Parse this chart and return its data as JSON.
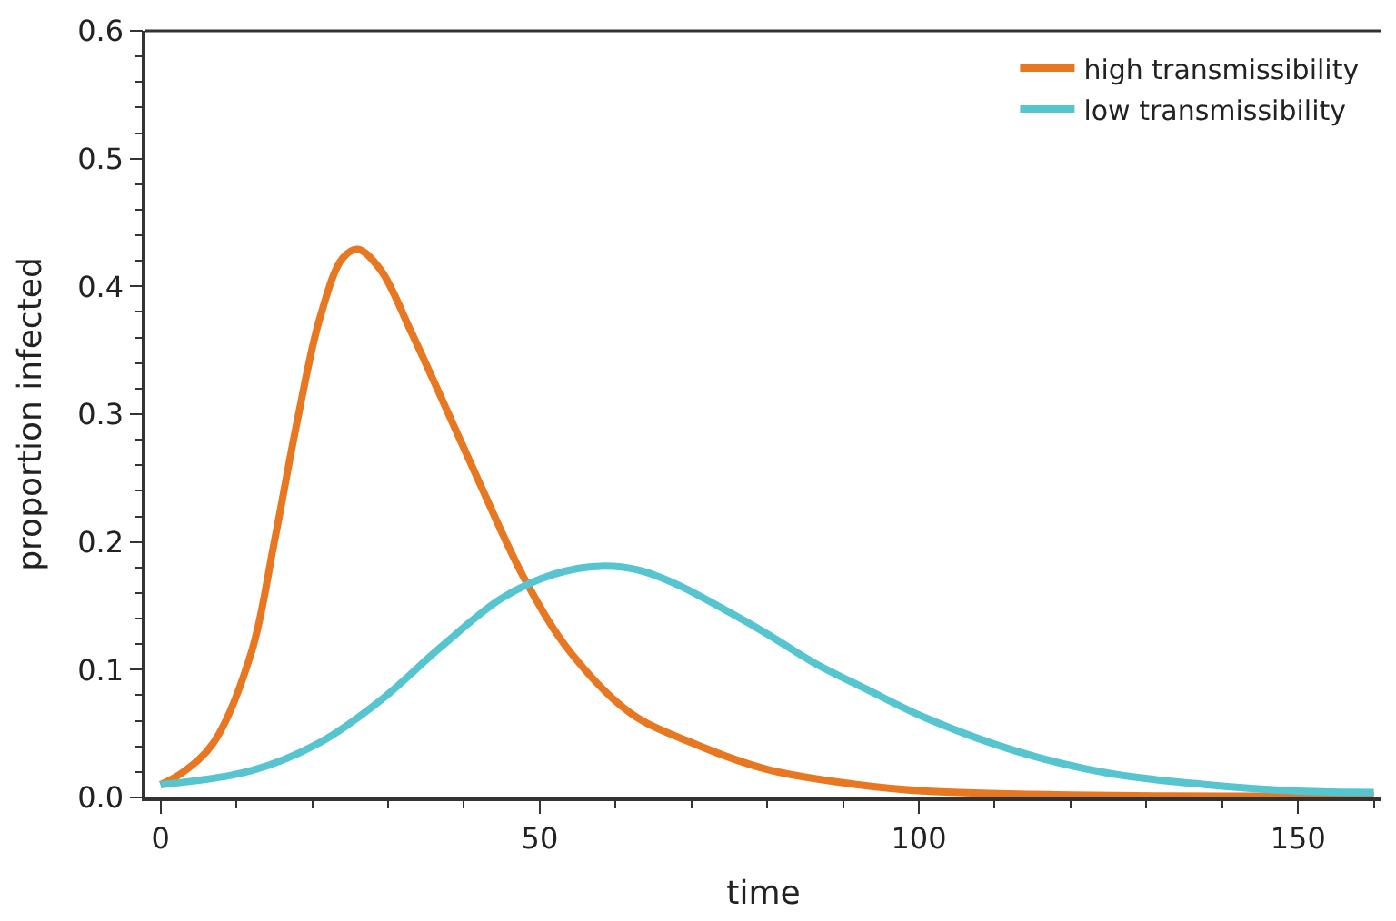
{
  "chart_data": {
    "type": "line",
    "xlabel": "time",
    "ylabel": "proportion infected",
    "xlim": [
      -2,
      161
    ],
    "xticks": [
      0,
      50,
      100,
      150
    ],
    "ylim": [
      0,
      0.6
    ],
    "yticks": [
      {
        "value": 0,
        "label": "0.0"
      },
      0.1,
      0.2,
      0.3,
      0.4,
      0.5,
      0.6
    ],
    "legend": "top right",
    "marker": "none",
    "line_style": "solid",
    "series": [
      {
        "name": "high transmissibility",
        "color": "#e87722",
        "x": [
          0,
          3,
          7,
          12,
          15,
          18,
          21,
          24,
          26,
          29,
          33,
          37,
          42,
          48,
          54,
          62,
          70,
          80,
          92,
          101,
          120,
          140,
          160
        ],
        "values": [
          0.01,
          0.02,
          0.043,
          0.114,
          0.2,
          0.294,
          0.375,
          0.422,
          0.429,
          0.413,
          0.365,
          0.313,
          0.247,
          0.171,
          0.114,
          0.066,
          0.043,
          0.022,
          0.01,
          0.005,
          0.002,
          0.001,
          0.001
        ]
      },
      {
        "name": "low transmissibility",
        "color": "#56c5d0",
        "x": [
          0,
          12,
          21,
          29,
          37,
          45,
          52,
          58,
          63,
          68,
          75,
          80,
          86,
          93,
          101,
          113,
          125,
          138,
          150,
          160
        ],
        "values": [
          0.01,
          0.021,
          0.043,
          0.076,
          0.118,
          0.156,
          0.175,
          0.181,
          0.178,
          0.167,
          0.145,
          0.128,
          0.106,
          0.085,
          0.062,
          0.036,
          0.019,
          0.01,
          0.005,
          0.004
        ]
      }
    ]
  }
}
